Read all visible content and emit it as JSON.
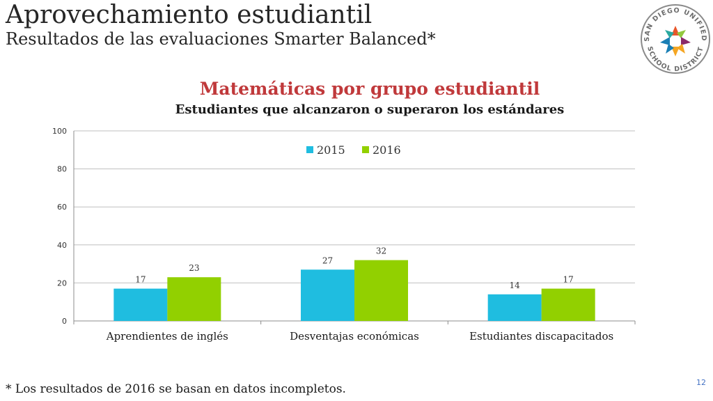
{
  "slide": {
    "title": "Aprovechamiento estudiantil",
    "subtitle": "Resultados de las evaluaciones Smarter Balanced*",
    "footnote": "* Los resultados de 2016 se basan en datos incompletos.",
    "page_number": "12",
    "logo": {
      "text_top": "SAN DIEGO UNIFIED",
      "text_bottom": "SCHOOL DISTRICT",
      "icon": "star-logo-icon"
    }
  },
  "colors": {
    "series_2015": "#1fbde0",
    "series_2016": "#92d000",
    "title_red": "#c0393b",
    "gridline": "#bfbfbf"
  },
  "chart_data": {
    "type": "bar",
    "title": "Matemáticas por grupo estudiantil",
    "subtitle": "Estudiantes que alcanzaron o superaron los estándares",
    "categories": [
      "Aprendientes de inglés",
      "Desventajas económicas",
      "Estudiantes discapacitados"
    ],
    "series": [
      {
        "name": "2015",
        "values": [
          17,
          27,
          14
        ]
      },
      {
        "name": "2016",
        "values": [
          23,
          32,
          17
        ]
      }
    ],
    "ylim": [
      0,
      100
    ],
    "yticks": [
      0,
      20,
      40,
      60,
      80,
      100
    ],
    "xlabel": "",
    "ylabel": "",
    "grid": true,
    "legend_position": "top-center"
  }
}
